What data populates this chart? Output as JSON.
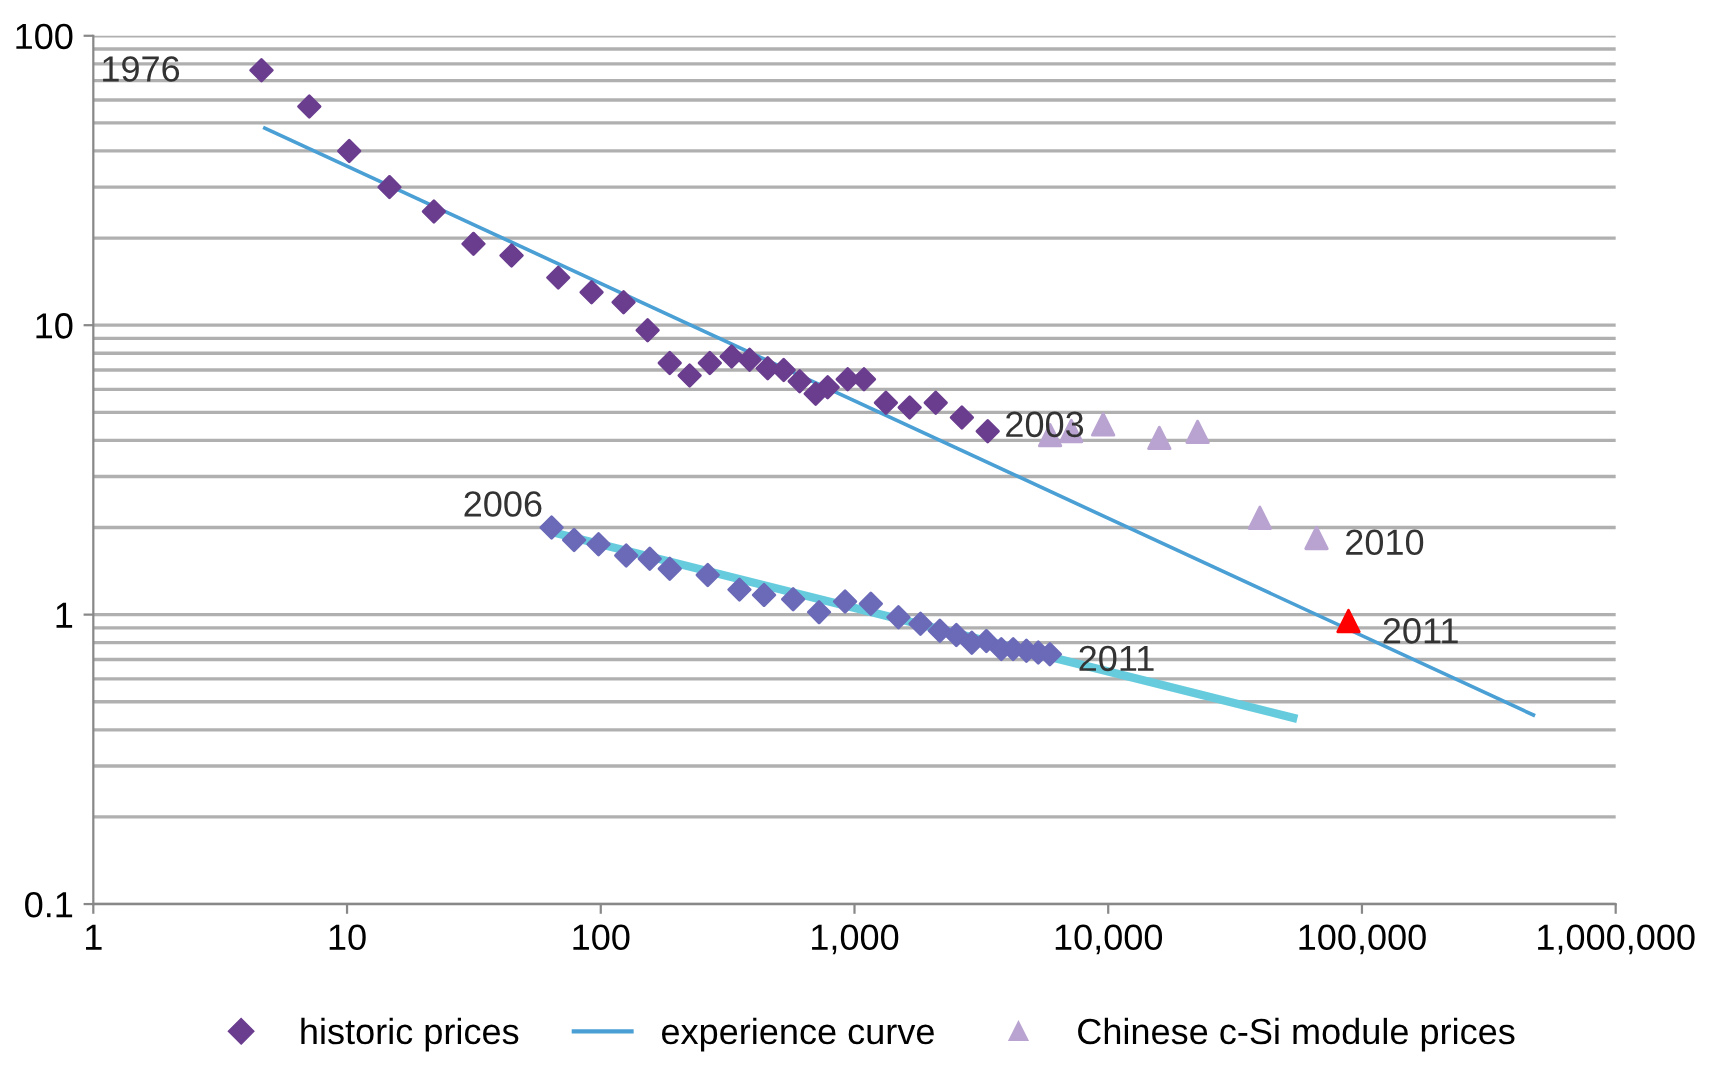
{
  "chart_data": {
    "type": "scatter",
    "log": "xy",
    "xlim": [
      1,
      1000000
    ],
    "ylim": [
      0.1,
      100
    ],
    "xticks": [
      1,
      10,
      100,
      {
        "value": 1000,
        "label": "1,000"
      },
      {
        "value": 10000,
        "label": "10,000"
      },
      {
        "value": 100000,
        "label": "100,000"
      },
      {
        "value": 1000000,
        "label": "1,000,000"
      }
    ],
    "yticks": [
      0.1,
      1,
      10,
      100
    ],
    "grid": "y",
    "legend": "bottom",
    "series": [
      {
        "name": "historic prices",
        "marker": "diamond",
        "color": "#6a3d8f",
        "x": [
          4.6,
          7.1,
          10.2,
          14.7,
          22,
          31.5,
          44.5,
          68,
          92,
          123,
          153,
          187,
          224,
          269,
          328,
          386,
          455,
          526,
          608,
          703,
          784,
          940,
          1090,
          1330,
          1650,
          2090,
          2650,
          3350
        ],
        "values": [
          76,
          57,
          40,
          30,
          24.7,
          19.1,
          17.4,
          14.6,
          13.0,
          12.0,
          9.6,
          7.4,
          6.7,
          7.4,
          7.8,
          7.6,
          7.1,
          7.0,
          6.4,
          5.8,
          6.1,
          6.5,
          6.5,
          5.4,
          5.2,
          5.4,
          4.8,
          4.3
        ]
      },
      {
        "name": "experience curve",
        "type": "line",
        "marker": "none",
        "line_style": "solid",
        "color": "#4a9fd4",
        "x": [
          4.74,
          474000
        ],
        "values": [
          48,
          0.45
        ]
      },
      {
        "name": "Chinese c-Si module prices",
        "marker": "triangle",
        "color": "#b9a3d0",
        "x": [
          5900,
          7150,
          9550,
          15900,
          22500,
          39600,
          66200
        ],
        "values": [
          4.17,
          4.31,
          4.54,
          4.08,
          4.28,
          2.16,
          1.84
        ]
      },
      {
        "marker": "triangle",
        "color": "#ff0000",
        "x": [
          88500
        ],
        "values": [
          0.95
        ]
      },
      {
        "marker": "diamond",
        "color": "#6a6ab8",
        "x": [
          64,
          78.5,
          98,
          126,
          156,
          187,
          264,
          352,
          440,
          573,
          725,
          918,
          1160,
          1490,
          1820,
          2170,
          2520,
          2900,
          3310,
          3790,
          4220,
          4760,
          5300,
          5890
        ],
        "values": [
          2.0,
          1.81,
          1.75,
          1.6,
          1.56,
          1.44,
          1.37,
          1.22,
          1.17,
          1.13,
          1.02,
          1.11,
          1.09,
          0.98,
          0.93,
          0.88,
          0.85,
          0.8,
          0.81,
          0.76,
          0.76,
          0.75,
          0.74,
          0.73
        ]
      },
      {
        "type": "line",
        "marker": "none",
        "line_style": "solid",
        "color": "#66ccdd",
        "x": [
          64,
          53600
        ],
        "values": [
          1.93,
          0.44
        ]
      }
    ],
    "annotations": [
      {
        "text": "1976",
        "x": 4.6,
        "y": 76
      },
      {
        "text": "2003",
        "x": 3350,
        "y": 4.3
      },
      {
        "text": "2006",
        "x": 64,
        "y": 2.0
      },
      {
        "text": "2010",
        "x": 66200,
        "y": 1.84
      },
      {
        "text": "2011",
        "x": 88500,
        "y": 0.95
      },
      {
        "text": "2011",
        "x": 5890,
        "y": 0.73
      }
    ]
  }
}
